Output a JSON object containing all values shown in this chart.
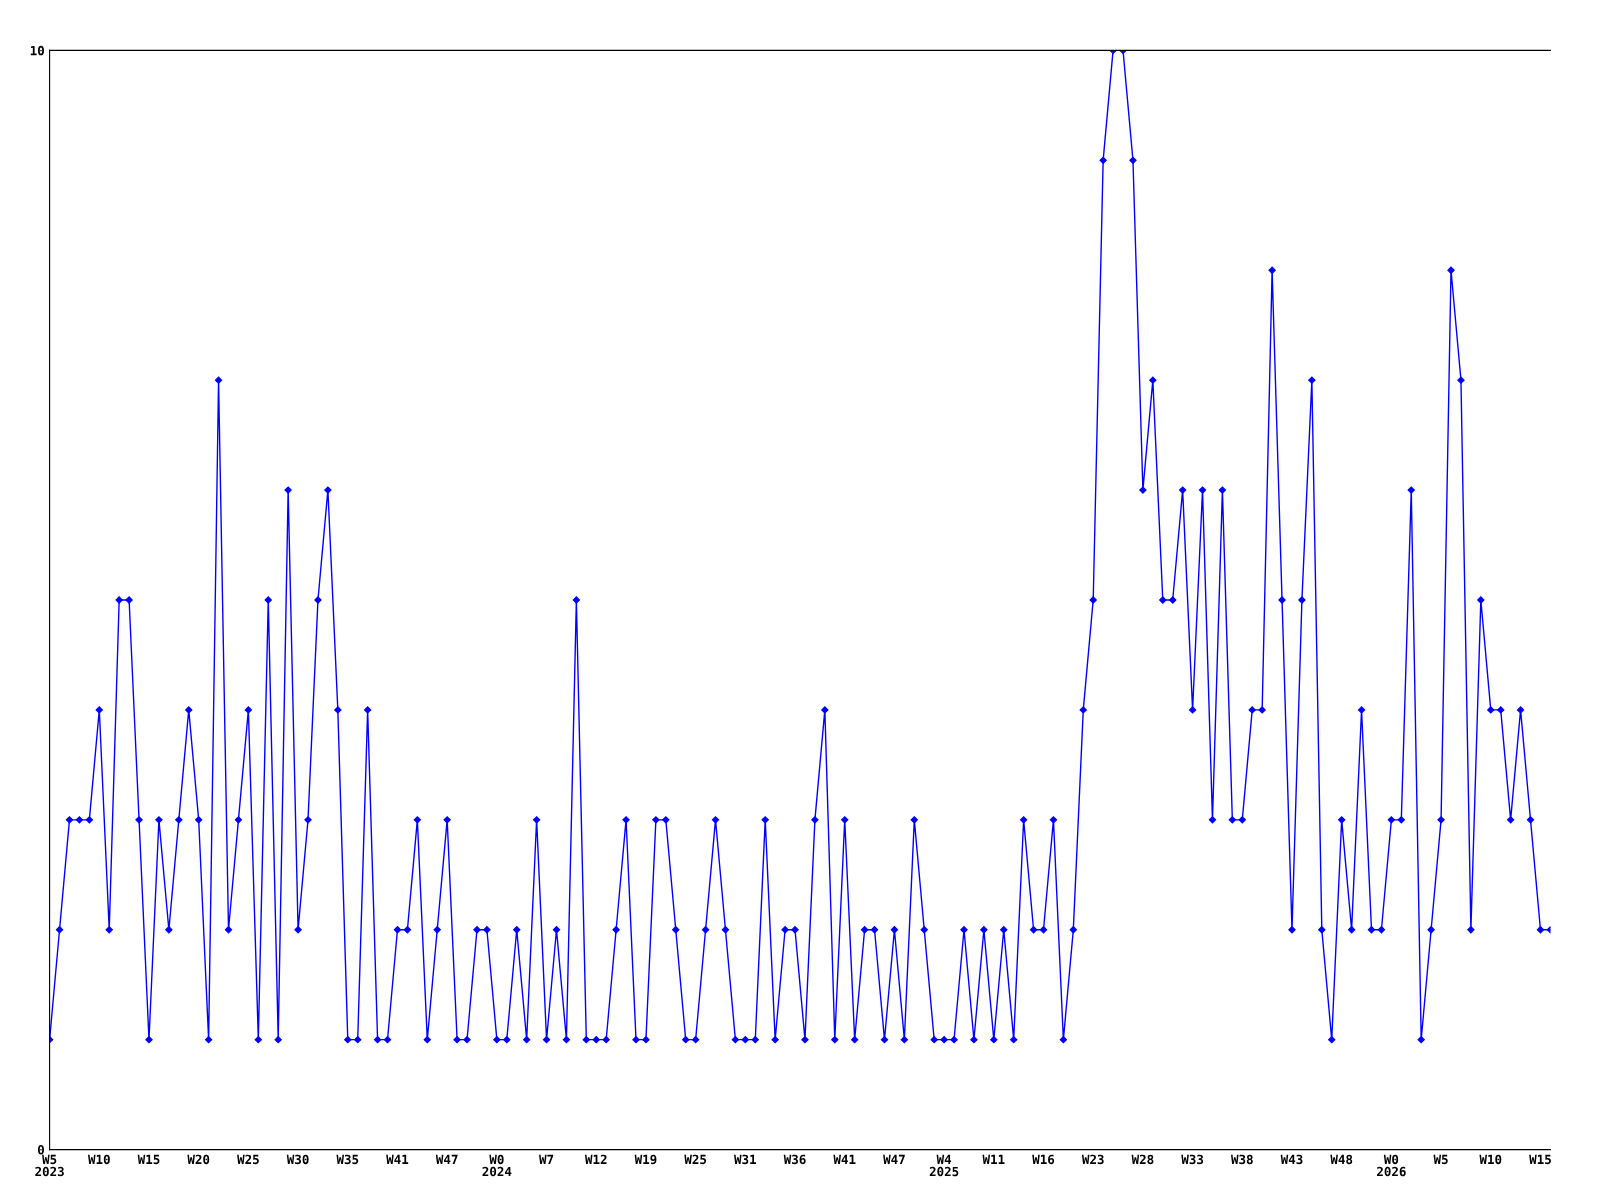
{
  "chart_data": {
    "type": "line",
    "categories": [
      "W5\n2023",
      null,
      null,
      null,
      null,
      "W10",
      null,
      null,
      null,
      null,
      "W15",
      null,
      null,
      null,
      null,
      "W20",
      null,
      null,
      null,
      null,
      "W25",
      null,
      null,
      null,
      null,
      "W30",
      null,
      null,
      null,
      null,
      "W35",
      null,
      null,
      null,
      null,
      "W41",
      null,
      null,
      null,
      null,
      "W47",
      null,
      null,
      null,
      null,
      "W0\n2024",
      null,
      null,
      null,
      null,
      "W7",
      null,
      null,
      null,
      null,
      "W12",
      null,
      null,
      null,
      null,
      "W19",
      null,
      null,
      null,
      null,
      "W25",
      null,
      null,
      null,
      null,
      "W31",
      null,
      null,
      null,
      null,
      "W36",
      null,
      null,
      null,
      null,
      "W41",
      null,
      null,
      null,
      null,
      "W47",
      null,
      null,
      null,
      null,
      "W4\n2025",
      null,
      null,
      null,
      null,
      "W11",
      null,
      null,
      null,
      null,
      "W16",
      null,
      null,
      null,
      null,
      "W23",
      null,
      null,
      null,
      null,
      "W28",
      null,
      null,
      null,
      null,
      "W33",
      null,
      null,
      null,
      null,
      "W38",
      null,
      null,
      null,
      null,
      "W43",
      null,
      null,
      null,
      null,
      "W48",
      null,
      null,
      null,
      null,
      "W0\n2026",
      null,
      null,
      null,
      null,
      "W5",
      null,
      null,
      null,
      null,
      "W10",
      null,
      null,
      null,
      null,
      "W15",
      null
    ],
    "series": [
      {
        "color": "#0000ff",
        "values": [
          1,
          2,
          3,
          3,
          3,
          4,
          2,
          5,
          5,
          3,
          1,
          3,
          2,
          3,
          4,
          3,
          1,
          7,
          2,
          3,
          4,
          1,
          5,
          1,
          6,
          2,
          3,
          5,
          6,
          4,
          1,
          1,
          4,
          1,
          1,
          2,
          2,
          3,
          1,
          2,
          3,
          1,
          1,
          2,
          2,
          1,
          1,
          2,
          1,
          3,
          1,
          2,
          1,
          5,
          1,
          1,
          1,
          2,
          3,
          1,
          1,
          3,
          3,
          2,
          1,
          1,
          2,
          3,
          2,
          1,
          1,
          1,
          3,
          1,
          2,
          2,
          1,
          3,
          4,
          1,
          3,
          1,
          2,
          2,
          1,
          2,
          1,
          3,
          2,
          1,
          1,
          1,
          2,
          1,
          2,
          1,
          2,
          1,
          3,
          2,
          2,
          3,
          1,
          2,
          4,
          5,
          9,
          10,
          10,
          9,
          6,
          7,
          5,
          5,
          6,
          4,
          6,
          3,
          6,
          3,
          3,
          4,
          4,
          8,
          5,
          2,
          5,
          7,
          2,
          1,
          3,
          2,
          4,
          2,
          2,
          3,
          3,
          6,
          1,
          2,
          3,
          8,
          7,
          2,
          5,
          4,
          4,
          3,
          4,
          3,
          2,
          2
        ]
      }
    ],
    "ylim": [
      0,
      10
    ],
    "yticks": [
      0,
      10
    ],
    "grid": false,
    "legend": false,
    "marker": "diamond",
    "line_style": "solid"
  }
}
